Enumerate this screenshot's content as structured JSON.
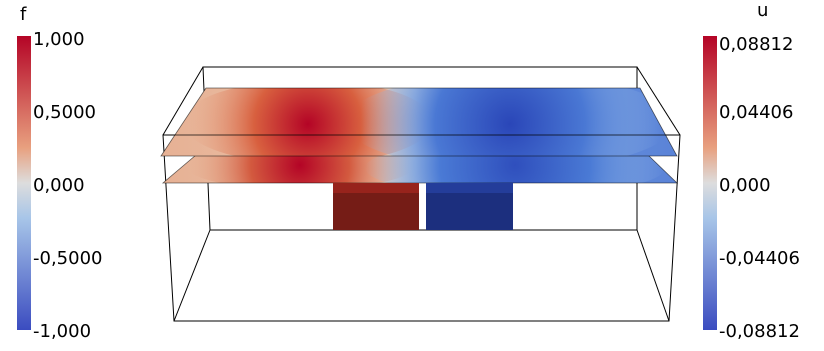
{
  "left_legend": {
    "title": "f",
    "ticks": [
      "1,000",
      "0,5000",
      "0,000",
      "-0,5000",
      "-1,000"
    ],
    "range": [
      -1.0,
      1.0
    ],
    "colormap": "cool-to-warm",
    "colors": {
      "high": "#b40426",
      "mid": "#dddddd",
      "low": "#3b4cc0"
    }
  },
  "right_legend": {
    "title": "u",
    "ticks": [
      "0,08812",
      "0,04406",
      "0,000",
      "-0,04406",
      "-0,08812"
    ],
    "range": [
      -0.08812,
      0.08812
    ],
    "colormap": "cool-to-warm",
    "colors": {
      "high": "#b40426",
      "mid": "#dddddd",
      "low": "#3b4cc0"
    }
  },
  "scene": {
    "source_block_left_color": "#751c16",
    "source_block_right_color": "#1c2f7e",
    "bounding_box_color": "#000000"
  }
}
